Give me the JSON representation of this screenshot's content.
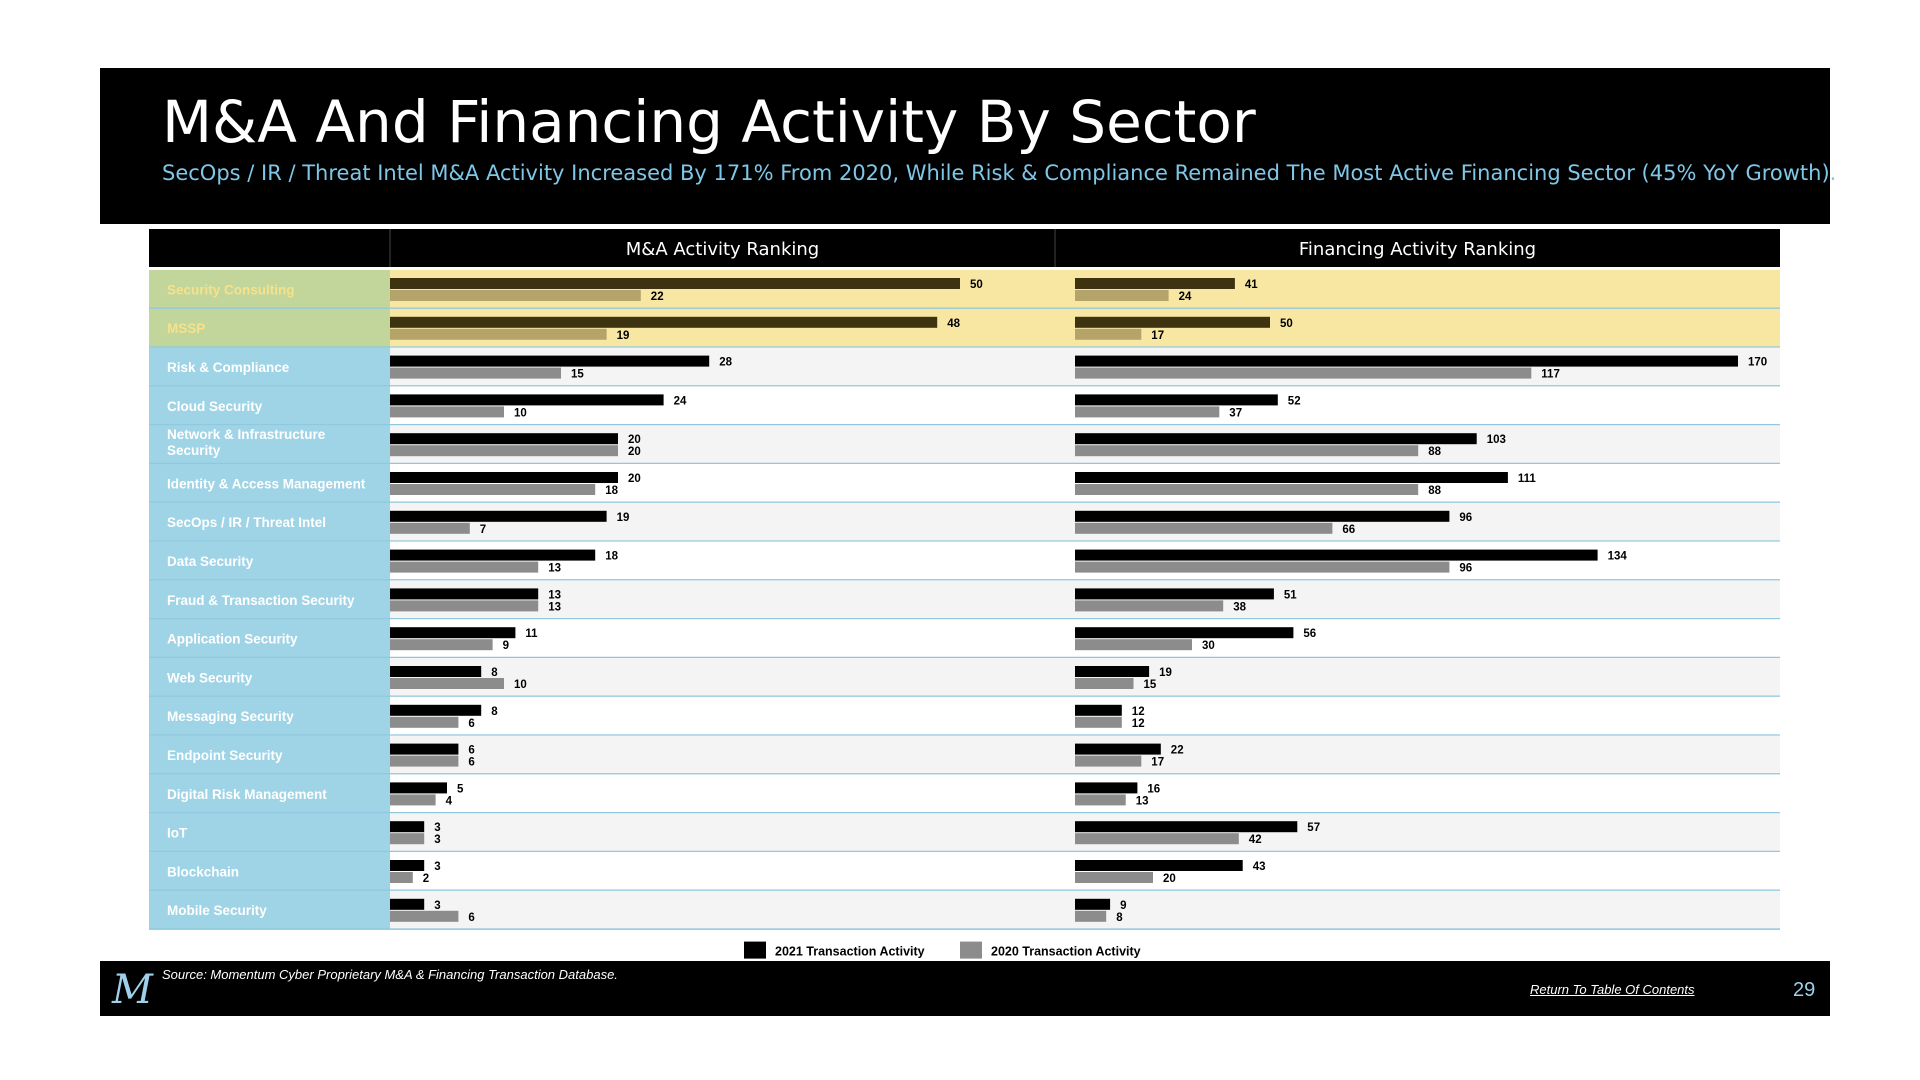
{
  "title": "M&A And Financing Activity By Sector",
  "subtitle": "SecOps / IR / Threat Intel M&A Activity Increased By 171% From 2020, While Risk & Compliance Remained The Most Active Financing Sector (45% YoY Growth).",
  "footer": {
    "logo": "M",
    "source": "Source: Momentum Cyber Proprietary M&A & Financing Transaction Database.",
    "toc_link": "Return To Table Of Contents",
    "page_number": "29"
  },
  "colors": {
    "series_2021": "#000000",
    "series_2020": "#8c8c8c",
    "highlight_2021": "#3d3310",
    "highlight_2020": "#b5a46a",
    "highlight_row_bg": "#f7e7a3",
    "highlight_label_bg": "#c2d59b",
    "highlight_label_text": "#f5e28a",
    "label_bg": "#9fd4e6",
    "row_alt_bg": "#f4f4f4",
    "divider": "#8fc8df"
  },
  "chart_data": [
    {
      "type": "bar",
      "orientation": "horizontal",
      "title": "M&A Activity Ranking",
      "categories": [
        "Security Consulting",
        "MSSP",
        "Risk & Compliance",
        "Cloud Security",
        "Network & Infrastructure Security",
        "Identity & Access Management",
        "SecOps / IR / Threat Intel",
        "Data Security",
        "Fraud & Transaction Security",
        "Application Security",
        "Web Security",
        "Messaging Security",
        "Endpoint Security",
        "Digital Risk Management",
        "IoT",
        "Blockchain",
        "Mobile Security"
      ],
      "highlighted_categories": [
        "Security Consulting",
        "MSSP"
      ],
      "series": [
        {
          "name": "2021 Transaction Activity",
          "values": [
            50,
            48,
            28,
            24,
            20,
            20,
            19,
            18,
            13,
            11,
            8,
            8,
            6,
            5,
            3,
            3,
            3
          ]
        },
        {
          "name": "2020 Transaction Activity",
          "values": [
            22,
            19,
            15,
            10,
            20,
            18,
            7,
            13,
            13,
            9,
            10,
            6,
            6,
            4,
            3,
            2,
            6
          ]
        }
      ],
      "xlim": [
        0,
        50
      ]
    },
    {
      "type": "bar",
      "orientation": "horizontal",
      "title": "Financing Activity Ranking",
      "categories": [
        "Security Consulting",
        "MSSP",
        "Risk & Compliance",
        "Cloud Security",
        "Network & Infrastructure Security",
        "Identity & Access Management",
        "SecOps / IR / Threat Intel",
        "Data Security",
        "Fraud & Transaction Security",
        "Application Security",
        "Web Security",
        "Messaging Security",
        "Endpoint Security",
        "Digital Risk Management",
        "IoT",
        "Blockchain",
        "Mobile Security"
      ],
      "highlighted_categories": [
        "Security Consulting",
        "MSSP"
      ],
      "series": [
        {
          "name": "2021 Transaction Activity",
          "values": [
            41,
            50,
            170,
            52,
            103,
            111,
            96,
            134,
            51,
            56,
            19,
            12,
            22,
            16,
            57,
            43,
            9
          ]
        },
        {
          "name": "2020 Transaction Activity",
          "values": [
            24,
            17,
            117,
            37,
            88,
            88,
            66,
            96,
            38,
            30,
            15,
            12,
            17,
            13,
            42,
            20,
            8
          ]
        }
      ],
      "xlim": [
        0,
        170
      ]
    }
  ],
  "legend": {
    "position": "bottom-center",
    "items": [
      {
        "label": "2021 Transaction Activity",
        "color": "#000000"
      },
      {
        "label": "2020 Transaction Activity",
        "color": "#8c8c8c"
      }
    ]
  }
}
